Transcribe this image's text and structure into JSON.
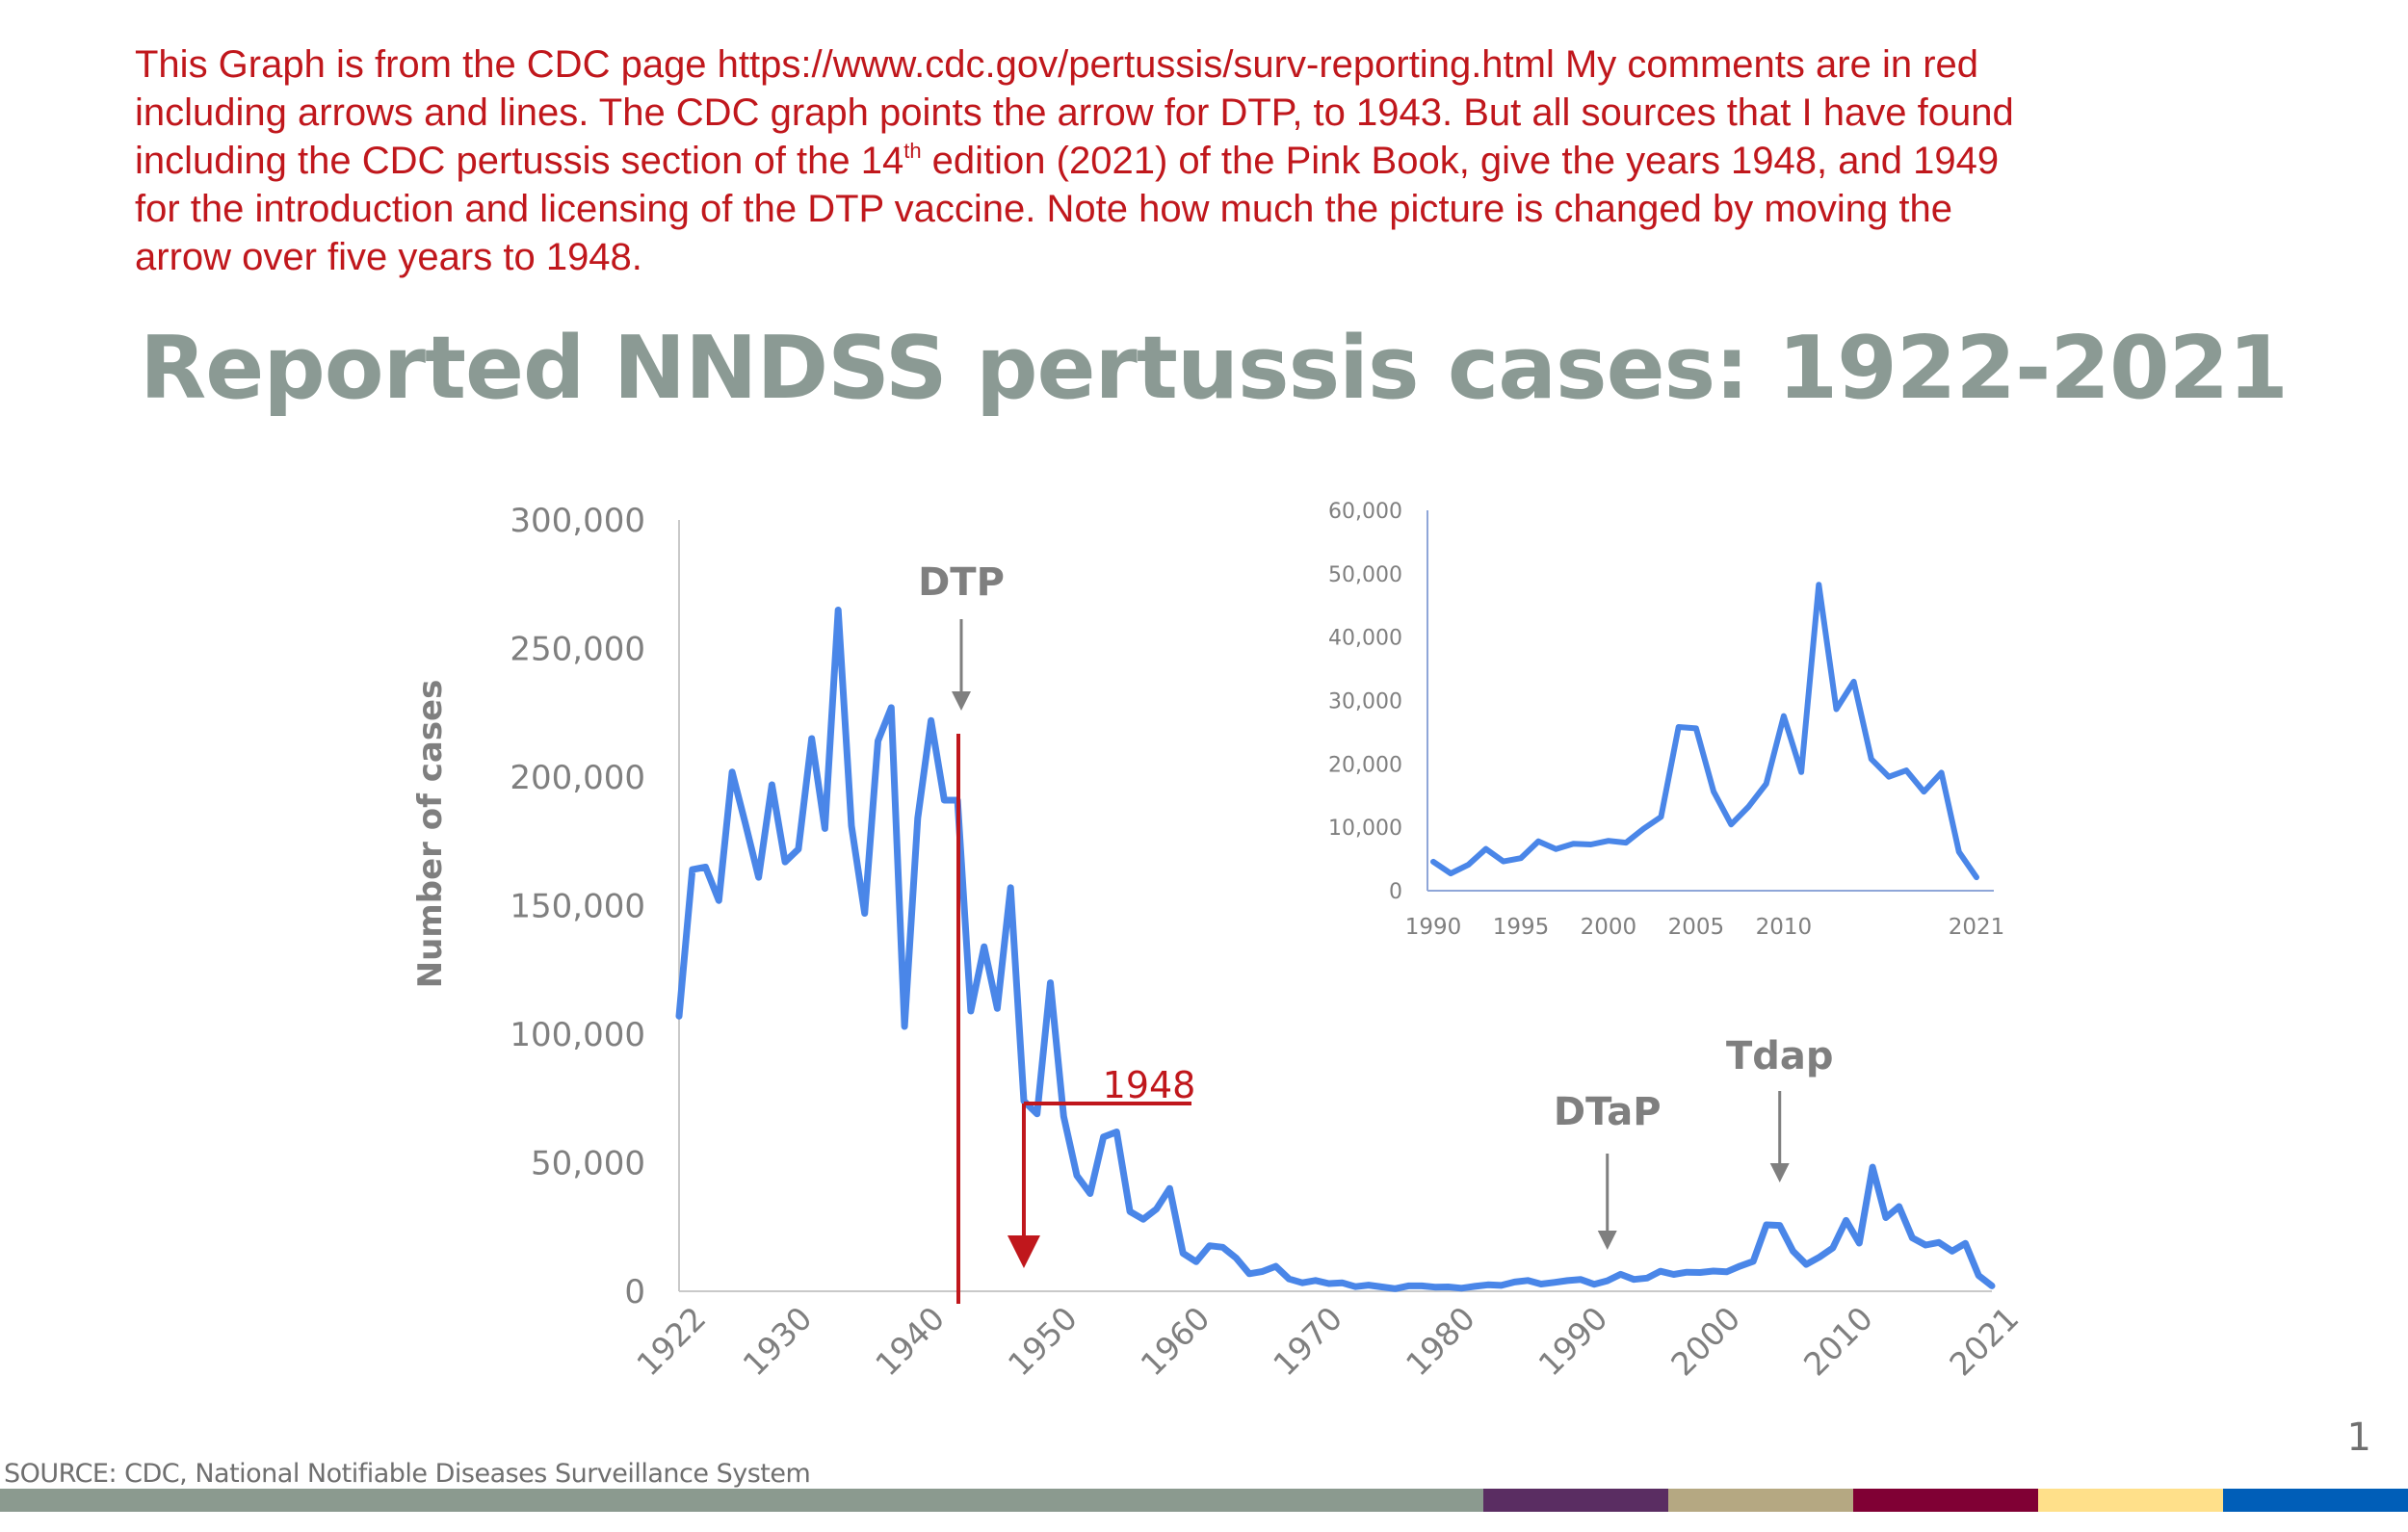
{
  "comment": {
    "line1": "This Graph is from the CDC page https://www.cdc.gov/pertussis/surv-reporting.html My comments are in red",
    "line2": "including arrows and lines. The CDC graph points the arrow for DTP, to 1943. But all sources that I have found",
    "line3_before": "including the CDC pertussis section of the 14",
    "line3_sup": "th",
    "line3_after": " edition (2021) of the Pink Book, give the years 1948, and 1949",
    "line4": "for the introduction and licensing of the DTP vaccine. Note how much the picture is changed by moving the",
    "line5": "arrow over five years to 1948.",
    "color": "#c0171c"
  },
  "slide": {
    "title": "Reported NNDSS pertussis cases: 1922-2021",
    "source": "SOURCE:  CDC, National Notifiable Diseases Surveillance System",
    "page_number": "1",
    "footer_colors": [
      "#8b9a8f",
      "#5a2d62",
      "#b5a882",
      "#800034",
      "#ffe08a",
      "#005eb8"
    ]
  },
  "chart_data": [
    {
      "type": "line",
      "title": "",
      "xlabel": "",
      "ylabel": "Number of cases",
      "xlim": [
        1922,
        2021
      ],
      "ylim": [
        0,
        300000
      ],
      "x_ticks": [
        1922,
        1930,
        1940,
        1950,
        1960,
        1970,
        1980,
        1990,
        2000,
        2010,
        2021
      ],
      "y_ticks": [
        0,
        50000,
        100000,
        150000,
        200000,
        250000,
        300000
      ],
      "y_tick_labels": [
        "0",
        "50,000",
        "100,000",
        "150,000",
        "200,000",
        "250,000",
        "300,000"
      ],
      "grid": false,
      "line_color": "#4a86e8",
      "series": [
        {
          "x": [
            1922,
            1923,
            1924,
            1925,
            1926,
            1927,
            1928,
            1929,
            1930,
            1931,
            1932,
            1933,
            1934,
            1935,
            1936,
            1937,
            1938,
            1939,
            1940,
            1941,
            1942,
            1943,
            1944,
            1945,
            1946,
            1947,
            1948,
            1949,
            1950,
            1951,
            1952,
            1953,
            1954,
            1955,
            1956,
            1957,
            1958,
            1959,
            1960,
            1961,
            1962,
            1963,
            1964,
            1965,
            1966,
            1967,
            1968,
            1969,
            1970,
            1971,
            1972,
            1973,
            1974,
            1975,
            1976,
            1977,
            1978,
            1979,
            1980,
            1981,
            1982,
            1983,
            1984,
            1985,
            1986,
            1987,
            1988,
            1989,
            1990,
            1991,
            1992,
            1993,
            1994,
            1995,
            1996,
            1997,
            1998,
            1999,
            2000,
            2001,
            2002,
            2003,
            2004,
            2005,
            2006,
            2007,
            2008,
            2009,
            2010,
            2011,
            2012,
            2013,
            2014,
            2015,
            2016,
            2017,
            2018,
            2019,
            2020,
            2021
          ],
          "values": [
            107000,
            164000,
            165000,
            152000,
            202000,
            182000,
            161000,
            197000,
            167000,
            172000,
            215000,
            180000,
            265000,
            181000,
            147000,
            214000,
            227000,
            103000,
            184000,
            222000,
            191000,
            191000,
            109000,
            134000,
            110000,
            157000,
            74000,
            69000,
            120000,
            68000,
            45000,
            38000,
            60000,
            62000,
            31000,
            28000,
            32000,
            40000,
            14800,
            11500,
            17700,
            17100,
            13000,
            6800,
            7700,
            9700,
            4800,
            3300,
            4200,
            3000,
            3300,
            1800,
            2400,
            1700,
            1000,
            2100,
            2100,
            1600,
            1700,
            1200,
            1900,
            2500,
            2300,
            3600,
            4200,
            2800,
            3450,
            4150,
            4570,
            2719,
            4083,
            6586,
            4617,
            5137,
            7796,
            6564,
            7405,
            7288,
            7867,
            7580,
            9771,
            11647,
            25827,
            25616,
            15632,
            10454,
            13278,
            16858,
            27550,
            18719,
            48277,
            28639,
            32971,
            20762,
            17972,
            18975,
            15609,
            18617,
            6124,
            2116
          ]
        }
      ],
      "annotations": [
        {
          "label": "DTP",
          "year": 1943
        },
        {
          "label": "DTaP",
          "year": 1992
        },
        {
          "label": "Tdap",
          "year": 2005
        },
        {
          "label": "1948",
          "year": 1948,
          "color": "#c0171c"
        }
      ]
    },
    {
      "type": "line",
      "title": "",
      "xlim": [
        1990,
        2021
      ],
      "ylim": [
        0,
        60000
      ],
      "x_ticks": [
        1990,
        1995,
        2000,
        2005,
        2010,
        2021
      ],
      "y_ticks": [
        0,
        10000,
        20000,
        30000,
        40000,
        50000,
        60000
      ],
      "y_tick_labels": [
        "0",
        "10,000",
        "20,000",
        "30,000",
        "40,000",
        "50,000",
        "60,000"
      ],
      "grid": false,
      "line_color": "#4a86e8",
      "series": [
        {
          "x": [
            1990,
            1991,
            1992,
            1993,
            1994,
            1995,
            1996,
            1997,
            1998,
            1999,
            2000,
            2001,
            2002,
            2003,
            2004,
            2005,
            2006,
            2007,
            2008,
            2009,
            2010,
            2011,
            2012,
            2013,
            2014,
            2015,
            2016,
            2017,
            2018,
            2019,
            2020,
            2021
          ],
          "values": [
            4570,
            2719,
            4083,
            6586,
            4617,
            5137,
            7796,
            6564,
            7405,
            7288,
            7867,
            7580,
            9771,
            11647,
            25827,
            25616,
            15632,
            10454,
            13278,
            16858,
            27550,
            18719,
            48277,
            28639,
            32971,
            20762,
            17972,
            18975,
            15609,
            18617,
            6124,
            2116
          ]
        }
      ]
    }
  ]
}
